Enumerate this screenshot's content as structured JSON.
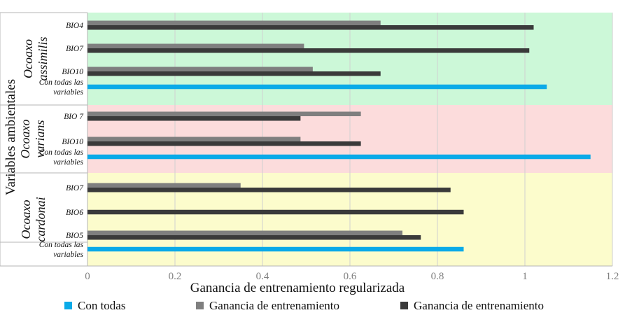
{
  "chart_data": {
    "type": "bar",
    "orientation": "horizontal",
    "xlabel": "Ganancia de entrenamiento regularizada",
    "ylabel": "Variables ambientales",
    "xlim": [
      0,
      1.2
    ],
    "xticks": [
      "0",
      "0.2",
      "0.4",
      "0.6",
      "0.8",
      "1",
      "1.2"
    ],
    "grid": "vertical",
    "legend_position": "bottom",
    "colors": {
      "con_todas": "#0aaae8",
      "ganancia_gray": "#7f7f7f",
      "ganancia_dark": "#3a3a3a",
      "bg_assimilis": "#ccf8d8",
      "bg_varians": "#fcdcdc",
      "bg_cardonai": "#fcfccc"
    },
    "series": [
      {
        "name": "Con todas",
        "color": "#0aaae8"
      },
      {
        "name": "Ganancia de entrenamiento",
        "color": "#7f7f7f"
      },
      {
        "name": "Ganancia de entrenamiento",
        "color": "#3a3a3a"
      }
    ],
    "groups": [
      {
        "name_lines": [
          "Ocoaxo",
          "assimilis"
        ],
        "background": "#ccf8d8",
        "categories": [
          {
            "label_lines": [
              "BIO4"
            ],
            "gray": 0.67,
            "dark": 1.02
          },
          {
            "label_lines": [
              "BIO7"
            ],
            "gray": 0.495,
            "dark": 1.01
          },
          {
            "label_lines": [
              "BIO10"
            ],
            "gray": 0.515,
            "dark": 0.67
          },
          {
            "label_lines": [
              "Con todas las",
              "variables"
            ],
            "con_todas": 1.05
          }
        ]
      },
      {
        "name_lines": [
          "Ocoaxo",
          "varians"
        ],
        "background": "#fcdcdc",
        "categories": [
          {
            "label_lines": [
              "BIO 7"
            ],
            "gray": 0.625,
            "dark": 0.487
          },
          {
            "label_lines": [
              "BIO10"
            ],
            "gray": 0.487,
            "dark": 0.625
          },
          {
            "label_lines": [
              "Con todas las",
              "variables"
            ],
            "con_todas": 1.15
          }
        ]
      },
      {
        "name_lines": [
          "Ocoaxo",
          "cardonai"
        ],
        "background": "#fcfccc",
        "categories": [
          {
            "label_lines": [
              "BIO7"
            ],
            "gray": 0.35,
            "dark": 0.83
          },
          {
            "label_lines": [
              "BIO6"
            ],
            "dark": 0.86
          },
          {
            "label_lines": [
              "BIO5"
            ],
            "gray": 0.72,
            "dark": 0.762
          },
          {
            "label_lines": [
              "Con todas las",
              "variables"
            ],
            "con_todas": 0.86
          }
        ]
      }
    ]
  }
}
